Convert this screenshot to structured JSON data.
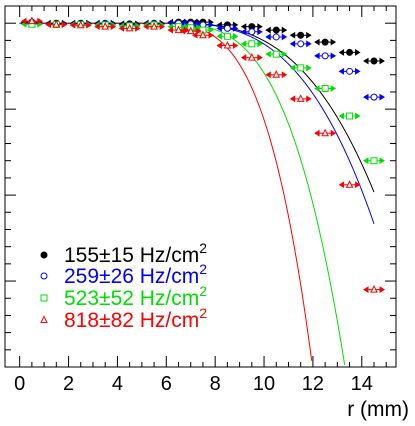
{
  "chart_data": {
    "type": "scatter",
    "title": "",
    "xlabel": "r (mm)",
    "ylabel": "",
    "xlim": [
      -0.6,
      15.4
    ],
    "ylim": [
      0,
      1.05
    ],
    "x_ticks": [
      0,
      2,
      4,
      6,
      8,
      10,
      12,
      14
    ],
    "x_tick_labels": [
      "0",
      "2",
      "4",
      "6",
      "8",
      "10",
      "12",
      "14"
    ],
    "grid": false,
    "legend_position": "bottom-left",
    "series": [
      {
        "name": "155±15 Hz/cm²",
        "label_main": "155±15 Hz/cm",
        "label_sup": "2",
        "color": "#000000",
        "marker": "filled-circle",
        "x": [
          0.5,
          1.5,
          2.5,
          3.5,
          4.5,
          5.5,
          6.5,
          7.0,
          7.5,
          8.5,
          9.5,
          10.5,
          11.5,
          12.5,
          13.5,
          14.5
        ],
        "y": [
          1.003,
          1.0,
          1.0,
          1.0,
          0.998,
          1.0,
          1.003,
          1.003,
          1.003,
          0.995,
          0.99,
          0.98,
          0.965,
          0.945,
          0.915,
          0.89
        ],
        "fit": {
          "r0": 6.0,
          "a": 0.0008,
          "p": 3
        }
      },
      {
        "name": "259±26 Hz/cm²",
        "label_main": "259±26 Hz/cm",
        "label_sup": "2",
        "color": "#0000ff",
        "marker": "open-circle",
        "x": [
          0.5,
          1.5,
          2.5,
          3.5,
          4.5,
          5.5,
          6.5,
          7.0,
          7.5,
          8.5,
          9.5,
          10.5,
          11.5,
          12.5,
          13.5,
          14.5
        ],
        "y": [
          1.0,
          0.998,
          0.998,
          0.998,
          0.995,
          0.998,
          1.0,
          0.998,
          0.995,
          0.985,
          0.975,
          0.96,
          0.94,
          0.905,
          0.86,
          0.785
        ],
        "fit": {
          "r0": 6.0,
          "a": 0.00095,
          "p": 3
        }
      },
      {
        "name": "523±52 Hz/cm²",
        "label_main": "523±52 Hz/cm",
        "label_sup": "2",
        "color": "#00e000",
        "marker": "open-square",
        "x": [
          0.5,
          1.5,
          2.5,
          3.5,
          4.5,
          5.5,
          6.5,
          7.0,
          7.5,
          8.5,
          9.5,
          10.5,
          11.5,
          12.5,
          13.5,
          14.5
        ],
        "y": [
          0.997,
          0.996,
          0.996,
          0.995,
          0.992,
          0.995,
          0.99,
          0.987,
          0.98,
          0.962,
          0.94,
          0.91,
          0.87,
          0.81,
          0.73,
          0.6
        ],
        "fit": {
          "r0": 5.5,
          "a": 0.00075,
          "p": 3.5
        }
      },
      {
        "name": "818±82 Hz/cm²",
        "label_main": "818±82 Hz/cm",
        "label_sup": "2",
        "color": "#ff0000",
        "marker": "open-triangle",
        "x": [
          0.5,
          1.5,
          2.5,
          3.5,
          4.5,
          5.5,
          6.5,
          7.0,
          7.5,
          8.5,
          9.5,
          10.5,
          11.5,
          12.5,
          13.5,
          14.5
        ],
        "y": [
          1.006,
          0.996,
          0.994,
          0.99,
          0.985,
          0.99,
          0.98,
          0.977,
          0.965,
          0.935,
          0.9,
          0.85,
          0.78,
          0.68,
          0.53,
          0.225
        ],
        "fit": {
          "r0": 5.0,
          "a": 0.00062,
          "p": 3.8
        }
      }
    ]
  }
}
